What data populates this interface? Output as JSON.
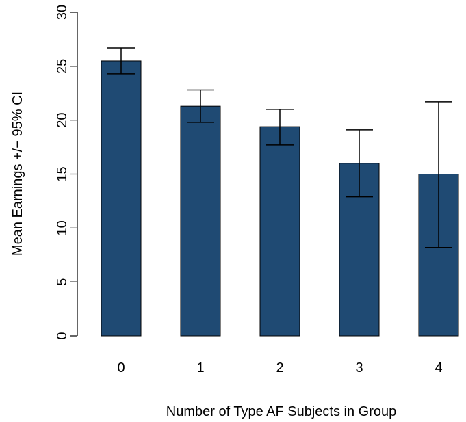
{
  "chart_data": {
    "type": "bar",
    "title": "",
    "xlabel": "Number of Type AF Subjects in Group",
    "ylabel": "Mean Earnings +/− 95% CI",
    "categories": [
      "0",
      "1",
      "2",
      "3",
      "4"
    ],
    "values": [
      25.5,
      21.3,
      19.4,
      16.0,
      15.0
    ],
    "ci_lower": [
      24.3,
      19.8,
      17.7,
      12.9,
      8.2
    ],
    "ci_upper": [
      26.7,
      22.8,
      21.0,
      19.1,
      21.7
    ],
    "yticks": [
      "0",
      "5",
      "10",
      "15",
      "20",
      "25",
      "30"
    ],
    "ylim": [
      0,
      30
    ],
    "grid": false,
    "legend": "none",
    "bar_color": "#1F4A73"
  }
}
